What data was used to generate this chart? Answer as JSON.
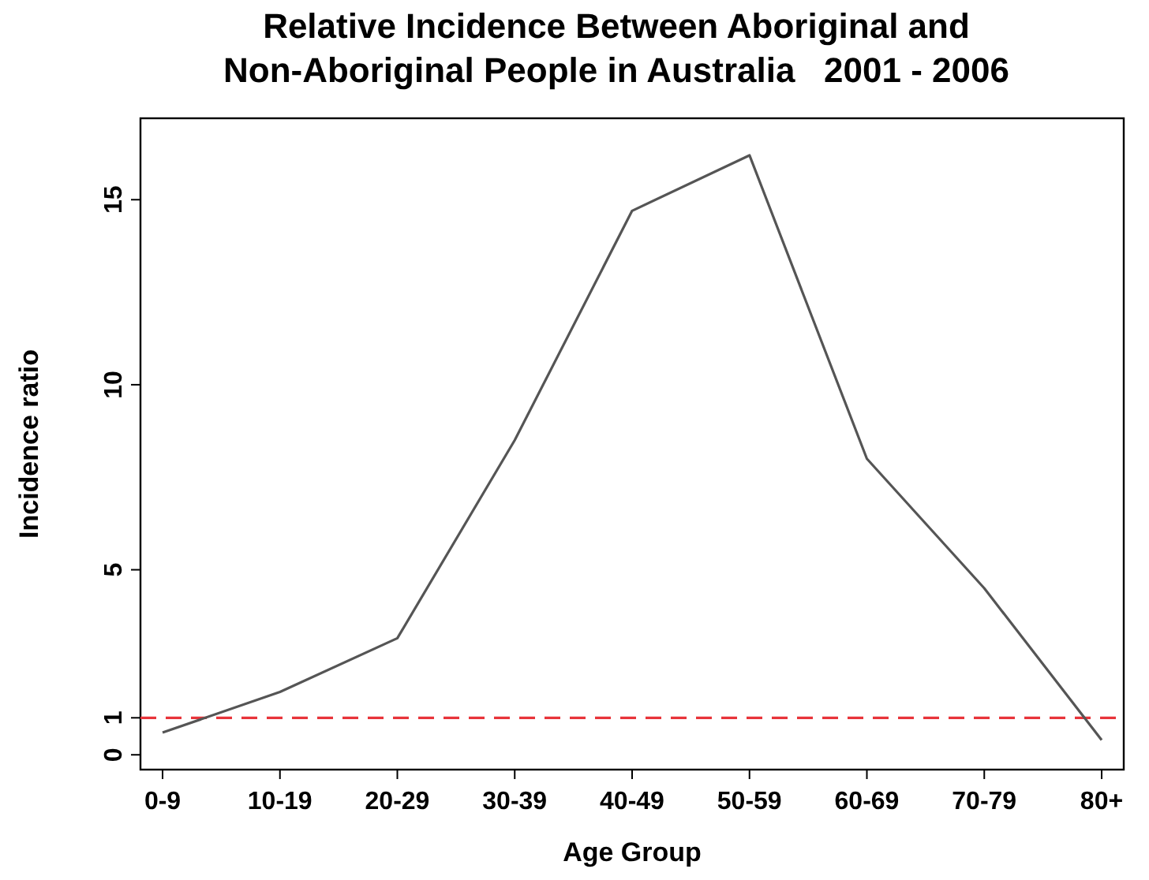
{
  "chart_data": {
    "type": "line",
    "title": "Relative Incidence Between Aboriginal and Non-Aboriginal People in Australia   2001 - 2006",
    "xlabel": "Age Group",
    "ylabel": "Incidence ratio",
    "categories": [
      "0-9",
      "10-19",
      "20-29",
      "30-39",
      "40-49",
      "50-59",
      "60-69",
      "70-79",
      "80+"
    ],
    "series": [
      {
        "color": "#555555",
        "values": [
          0.6,
          1.7,
          3.15,
          8.5,
          14.7,
          16.2,
          8.0,
          4.5,
          0.4
        ]
      }
    ],
    "ylim": [
      -0.4,
      17.2
    ],
    "yticks": [
      0,
      1,
      5,
      10,
      15
    ],
    "grid": false,
    "marker": "none",
    "line_style": "solid",
    "ref_lines": [
      {
        "axis": "y",
        "value": 1,
        "color": "#e8343a",
        "line_style": "dashed"
      }
    ]
  }
}
